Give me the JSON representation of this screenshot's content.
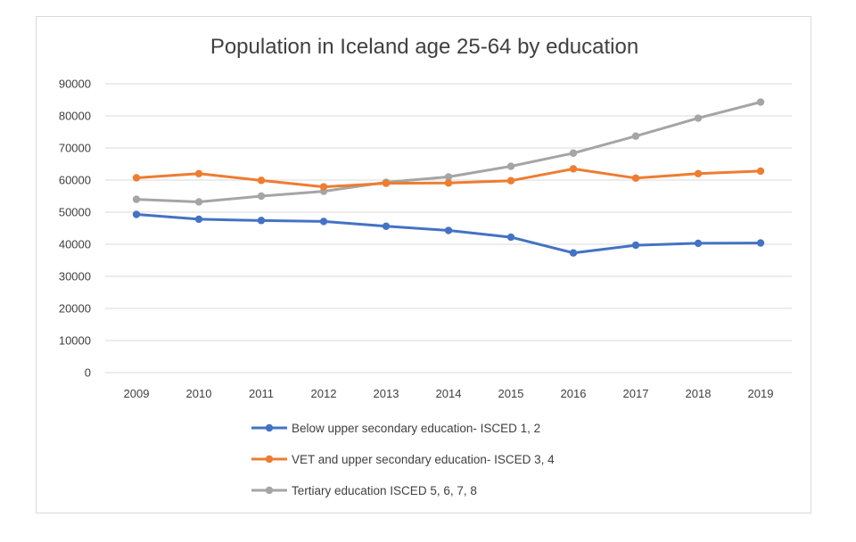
{
  "chart_data": {
    "type": "line",
    "title": "Population in Iceland age 25-64 by education",
    "xlabel": "",
    "ylabel": "",
    "categories": [
      "2009",
      "2010",
      "2011",
      "2012",
      "2013",
      "2014",
      "2015",
      "2016",
      "2017",
      "2018",
      "2019"
    ],
    "y_ticks": [
      "0",
      "10000",
      "20000",
      "30000",
      "40000",
      "50000",
      "60000",
      "70000",
      "80000",
      "90000"
    ],
    "ylim": [
      0,
      90000
    ],
    "grid": true,
    "legend_position": "bottom",
    "series": [
      {
        "name": "Below upper secondary education- ISCED 1, 2",
        "color": "#4472c4",
        "values": [
          49300,
          47800,
          47400,
          47100,
          45600,
          44300,
          42200,
          37300,
          39700,
          40300,
          40400
        ]
      },
      {
        "name": "VET and upper secondary education- ISCED 3, 4",
        "color": "#ed7d31",
        "values": [
          60700,
          62000,
          59900,
          57900,
          59000,
          59100,
          59800,
          63500,
          60600,
          62000,
          62800
        ]
      },
      {
        "name": "Tertiary education ISCED 5, 6, 7, 8",
        "color": "#a5a5a5",
        "values": [
          54000,
          53200,
          55000,
          56500,
          59300,
          61000,
          64300,
          68400,
          73700,
          79300,
          84300
        ]
      }
    ]
  }
}
